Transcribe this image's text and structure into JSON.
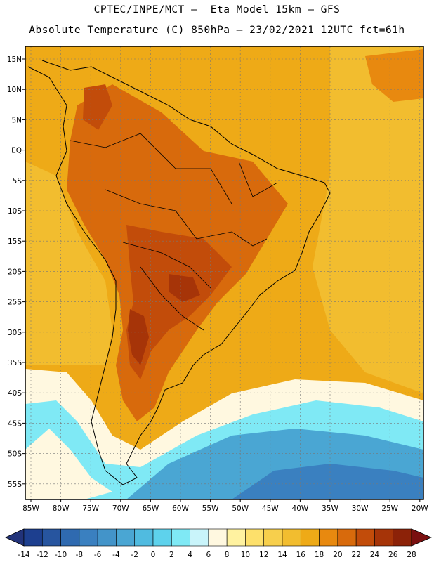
{
  "header": {
    "line1": "CPTEC/INPE/MCT –  Eta Model 15km – GFS",
    "line2": "Absolute Temperature (C) 850hPa – 23/02/2021 12UTC fct=61h"
  },
  "lat_labels": [
    "15N",
    "10N",
    "5N",
    "EQ",
    "5S",
    "10S",
    "15S",
    "20S",
    "25S",
    "30S",
    "35S",
    "40S",
    "45S",
    "50S",
    "55S"
  ],
  "lon_labels": [
    "85W",
    "80W",
    "75W",
    "70W",
    "65W",
    "60W",
    "55W",
    "50W",
    "45W",
    "40W",
    "35W",
    "30W",
    "25W",
    "20W"
  ],
  "colorbar": {
    "labels": [
      "-14",
      "-12",
      "-10",
      "-8",
      "-6",
      "-4",
      "-2",
      "0",
      "2",
      "4",
      "6",
      "8",
      "10",
      "12",
      "14",
      "16",
      "18",
      "20",
      "22",
      "24",
      "26",
      "28"
    ],
    "colors": [
      "#1d3f8f",
      "#27559f",
      "#2f6ab0",
      "#3a80c0",
      "#4394c9",
      "#4aa6d3",
      "#50bbe0",
      "#5ed2ec",
      "#7fe9f5",
      "#c9f4fa",
      "#fff8e0",
      "#fff2a0",
      "#fde06b",
      "#f7cf4c",
      "#f2bd2f",
      "#eeaa17",
      "#e8890f",
      "#d86a0c",
      "#c24c0a",
      "#a63408",
      "#8c2208"
    ],
    "under_color": "#22337a",
    "over_color": "#7a1010"
  },
  "map": {
    "field_colors": {
      "ocean_warm": "#eeaa17",
      "ocean_mild": "#f2bd2f",
      "land_hot": "#d86a0c",
      "land_veryhot": "#c24c0a",
      "land_hottest": "#a63408",
      "cool_band": "#fff8e0",
      "cold_band": "#7fe9f5",
      "cold_deep": "#4aa6d3",
      "cold_deepest": "#3a80c0"
    }
  }
}
